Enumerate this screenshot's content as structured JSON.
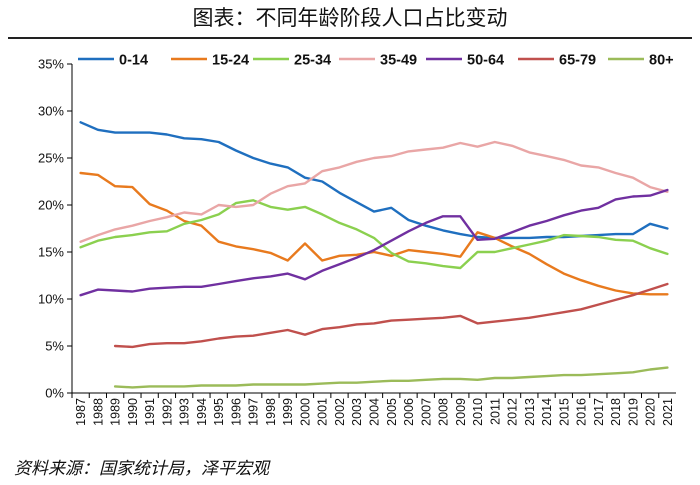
{
  "title": "图表：不同年龄阶段人口占比变动",
  "source": "资料来源：国家统计局，泽平宏观",
  "chart_data": {
    "type": "line",
    "xlabel": "",
    "ylabel": "",
    "x": [
      "1987",
      "1988",
      "1989",
      "1990",
      "1991",
      "1992",
      "1993",
      "1994",
      "1995",
      "1996",
      "1997",
      "1998",
      "1999",
      "2000",
      "2001",
      "2002",
      "2003",
      "2004",
      "2005",
      "2006",
      "2007",
      "2008",
      "2009",
      "2010",
      "2011",
      "2012",
      "2013",
      "2014",
      "2015",
      "2016",
      "2017",
      "2018",
      "2019",
      "2020",
      "2021"
    ],
    "ylim": [
      0,
      35
    ],
    "yticks": [
      "0%",
      "5%",
      "10%",
      "15%",
      "20%",
      "25%",
      "30%",
      "35%"
    ],
    "grid": false,
    "legend_position": "top",
    "series": [
      {
        "name": "0-14",
        "color": "#1f6fbf",
        "values": [
          28.8,
          28.0,
          27.7,
          27.7,
          27.7,
          27.5,
          27.1,
          27.0,
          26.7,
          25.8,
          25.0,
          24.4,
          24.0,
          22.9,
          22.5,
          21.3,
          20.3,
          19.3,
          19.7,
          18.4,
          17.8,
          17.3,
          16.9,
          16.6,
          16.5,
          16.5,
          16.5,
          16.6,
          16.6,
          16.7,
          16.8,
          16.9,
          16.9,
          18.0,
          17.5
        ]
      },
      {
        "name": "15-24",
        "color": "#e87a1e",
        "values": [
          23.4,
          23.2,
          22.0,
          21.9,
          20.1,
          19.4,
          18.3,
          17.8,
          16.1,
          15.6,
          15.3,
          14.9,
          14.1,
          15.9,
          14.1,
          14.6,
          14.7,
          15.0,
          14.6,
          15.2,
          15.0,
          14.8,
          14.5,
          17.1,
          16.5,
          15.6,
          14.8,
          13.7,
          12.7,
          12.0,
          11.4,
          10.9,
          10.6,
          10.5,
          10.5
        ]
      },
      {
        "name": "25-34",
        "color": "#8bd04f",
        "values": [
          15.5,
          16.2,
          16.6,
          16.8,
          17.1,
          17.2,
          18.0,
          18.4,
          19.0,
          20.2,
          20.5,
          19.8,
          19.5,
          19.8,
          19.0,
          18.1,
          17.4,
          16.5,
          14.9,
          14.0,
          13.8,
          13.5,
          13.3,
          15.0,
          15.0,
          15.4,
          15.8,
          16.2,
          16.8,
          16.7,
          16.6,
          16.3,
          16.2,
          15.4,
          14.8
        ]
      },
      {
        "name": "35-49",
        "color": "#e9a6a6",
        "values": [
          16.1,
          16.8,
          17.4,
          17.8,
          18.3,
          18.7,
          19.2,
          19.0,
          20.0,
          19.8,
          20.0,
          21.2,
          22.0,
          22.3,
          23.6,
          24.0,
          24.6,
          25.0,
          25.2,
          25.7,
          25.9,
          26.1,
          26.6,
          26.2,
          26.7,
          26.3,
          25.6,
          25.2,
          24.8,
          24.2,
          24.0,
          23.4,
          22.9,
          21.9,
          21.4
        ]
      },
      {
        "name": "50-64",
        "color": "#7030a0",
        "values": [
          10.4,
          11.0,
          10.9,
          10.8,
          11.1,
          11.2,
          11.3,
          11.3,
          11.6,
          11.9,
          12.2,
          12.4,
          12.7,
          12.1,
          13.0,
          13.7,
          14.4,
          15.2,
          16.2,
          17.2,
          18.1,
          18.8,
          18.8,
          16.3,
          16.4,
          17.1,
          17.8,
          18.3,
          18.9,
          19.4,
          19.7,
          20.6,
          20.9,
          21.0,
          21.6
        ]
      },
      {
        "name": "65-79",
        "color": "#c0504d",
        "values": [
          null,
          null,
          5.0,
          4.9,
          5.2,
          5.3,
          5.3,
          5.5,
          5.8,
          6.0,
          6.1,
          6.4,
          6.7,
          6.2,
          6.8,
          7.0,
          7.3,
          7.4,
          7.7,
          7.8,
          7.9,
          8.0,
          8.2,
          7.4,
          7.6,
          7.8,
          8.0,
          8.3,
          8.6,
          8.9,
          9.4,
          9.9,
          10.4,
          11.0,
          11.6
        ]
      },
      {
        "name": "80+",
        "color": "#9bbb59",
        "values": [
          null,
          null,
          0.7,
          0.6,
          0.7,
          0.7,
          0.7,
          0.8,
          0.8,
          0.8,
          0.9,
          0.9,
          0.9,
          0.9,
          1.0,
          1.1,
          1.1,
          1.2,
          1.3,
          1.3,
          1.4,
          1.5,
          1.5,
          1.4,
          1.6,
          1.6,
          1.7,
          1.8,
          1.9,
          1.9,
          2.0,
          2.1,
          2.2,
          2.5,
          2.7
        ]
      }
    ]
  }
}
